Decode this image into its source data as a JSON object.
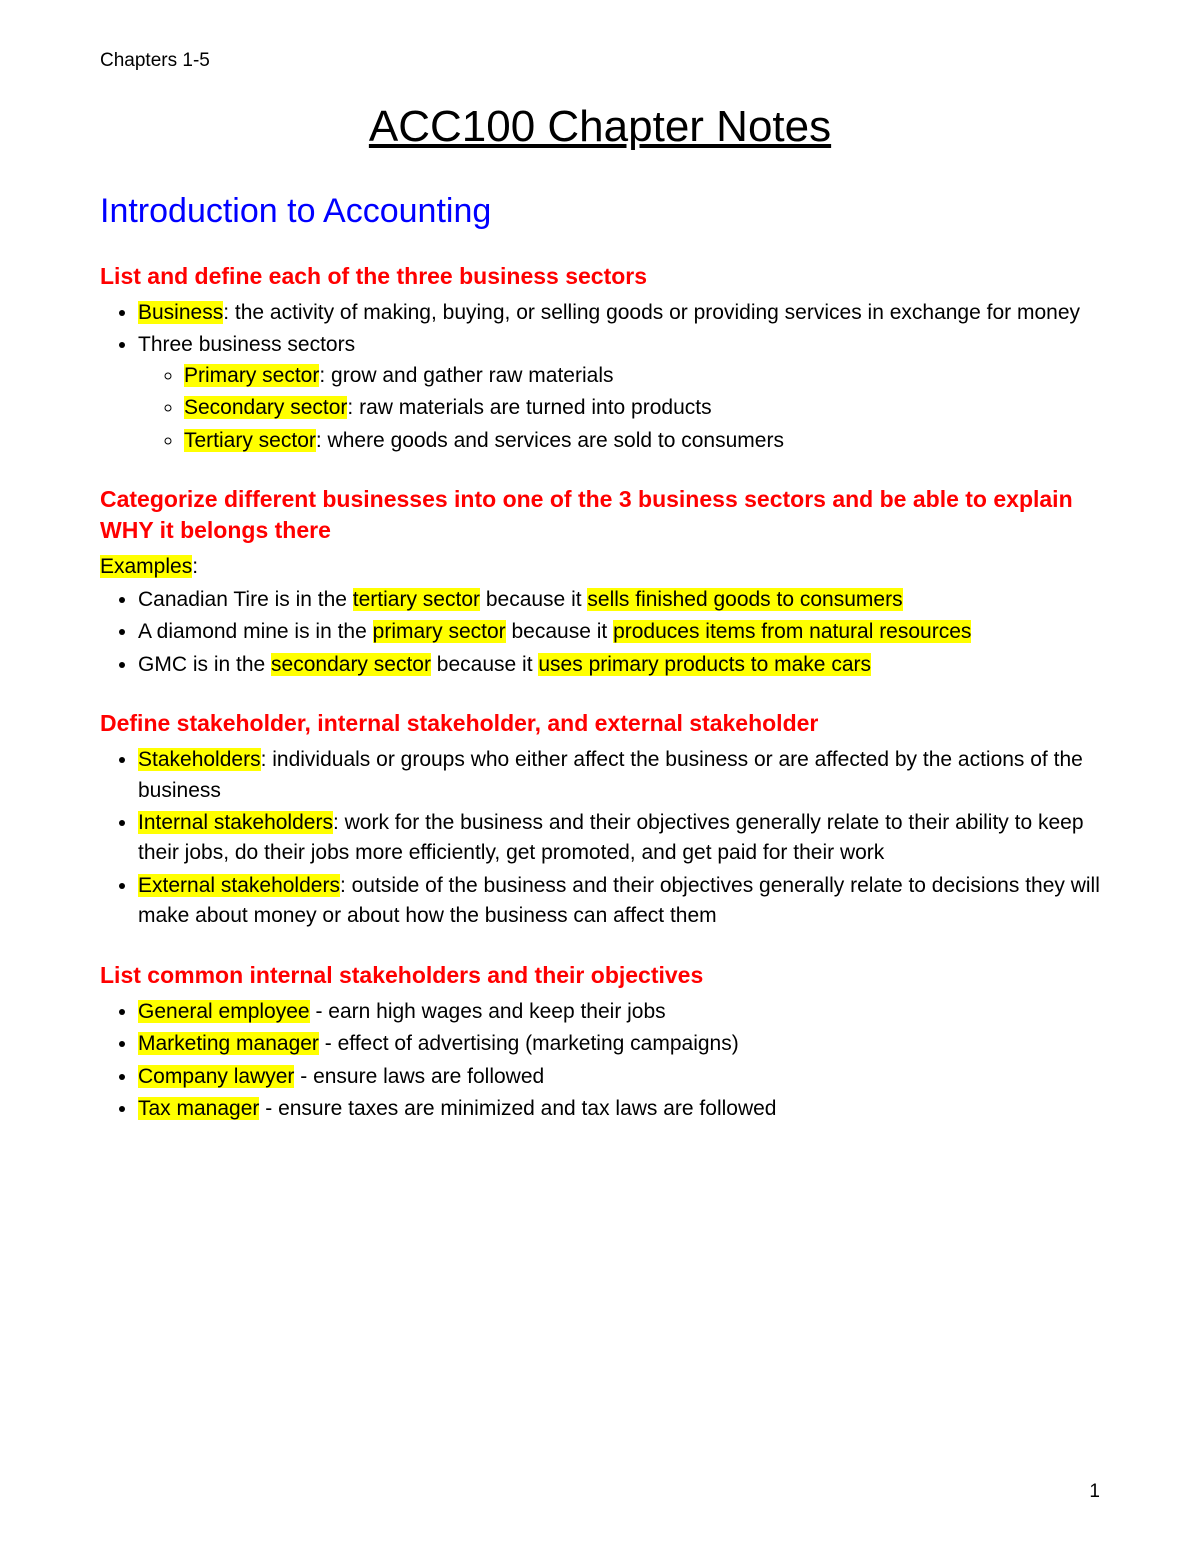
{
  "header": "Chapters 1-5",
  "title": "ACC100 Chapter Notes",
  "section": "Introduction to Accounting",
  "colors": {
    "highlight": "#ffff00",
    "heading_red": "#ff0000",
    "section_blue": "#0000ff",
    "text": "#000000",
    "background": "#ffffff"
  },
  "s1": {
    "heading": "List and define each of the three business sectors",
    "b1_hl": "Business",
    "b1_rest": ": the activity of making, buying, or selling goods or providing services in exchange for money",
    "b2": "Three business sectors",
    "sub1_hl": "Primary sector",
    "sub1_rest": ": grow and gather raw materials",
    "sub2_hl": "Secondary sector",
    "sub2_rest": ": raw materials are turned into products",
    "sub3_hl": "Tertiary sector",
    "sub3_rest": ": where goods and services are sold to consumers"
  },
  "s2": {
    "heading": "Categorize different businesses into one of the 3 business sectors and be able to explain WHY it belongs there",
    "label_hl": "Examples",
    "label_rest": ":",
    "b1_a": "Canadian Tire is in the ",
    "b1_hl1": "tertiary sector",
    "b1_b": " because it ",
    "b1_hl2": "sells finished goods to consumers",
    "b2_a": "A diamond mine is in the ",
    "b2_hl1": "primary sector",
    "b2_b": " because it ",
    "b2_hl2": "produces items from natural resources",
    "b3_a": "GMC is in the ",
    "b3_hl1": "secondary sector",
    "b3_b": " because it ",
    "b3_hl2": "uses primary products to make cars"
  },
  "s3": {
    "heading": "Define stakeholder, internal stakeholder, and external stakeholder",
    "b1_hl": "Stakeholders",
    "b1_rest": ": individuals or groups who either affect the business or are affected by the actions of the business",
    "b2_hl": "Internal stakeholders",
    "b2_rest": ": work for the business and their objectives generally relate to their ability to keep their jobs, do their jobs more efficiently, get promoted, and get paid for their work",
    "b3_hl": "External stakeholders",
    "b3_rest": ": outside of the business and their objectives generally relate to decisions they will make about money or about how the business can affect them"
  },
  "s4": {
    "heading": "List common internal stakeholders and their objectives",
    "b1_hl": "General employee",
    "b1_rest": " - earn high wages and keep their jobs",
    "b2_hl": "Marketing manager",
    "b2_rest": " - effect of advertising (marketing campaigns)",
    "b3_hl": "Company lawyer",
    "b3_rest": " - ensure laws are followed",
    "b4_hl": "Tax manager",
    "b4_rest": " - ensure taxes are minimized and tax laws are followed"
  },
  "pageNumber": "1"
}
